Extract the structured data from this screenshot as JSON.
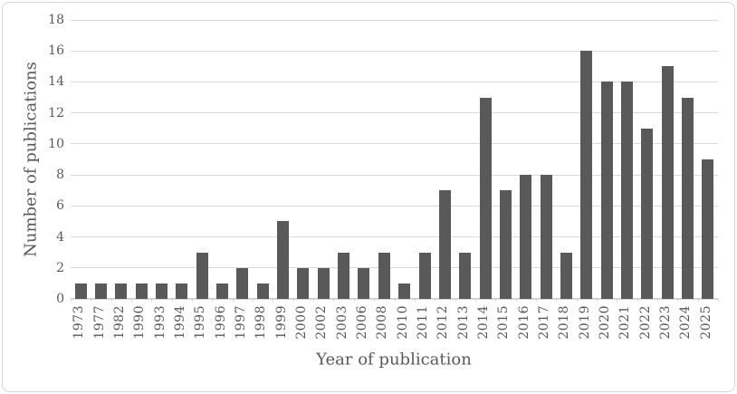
{
  "figure": {
    "background_color": "#ffffff",
    "border_color": "#d6d6d6"
  },
  "chart_data": {
    "type": "bar",
    "title": "",
    "xlabel": "Year of publication",
    "ylabel": "Number of publications",
    "categories": [
      "1973",
      "1977",
      "1982",
      "1990",
      "1993",
      "1994",
      "1995",
      "1996",
      "1997",
      "1998",
      "1999",
      "2000",
      "2002",
      "2003",
      "2006",
      "2008",
      "2010",
      "2011",
      "2012",
      "2013",
      "2014",
      "2015",
      "2016",
      "2017",
      "2018",
      "2019",
      "2020",
      "2021",
      "2022",
      "2023",
      "2024",
      "2025"
    ],
    "values": [
      1,
      1,
      1,
      1,
      1,
      1,
      3,
      1,
      2,
      1,
      5,
      2,
      2,
      3,
      2,
      3,
      1,
      3,
      7,
      3,
      13,
      7,
      8,
      8,
      3,
      16,
      14,
      14,
      11,
      15,
      13,
      9
    ],
    "ylim": [
      0,
      18
    ],
    "yticks": [
      0,
      2,
      4,
      6,
      8,
      10,
      12,
      14,
      16,
      18
    ],
    "grid": "horizontal",
    "legend": "none",
    "bar_color": "#595959",
    "gridline_color": "#d9d9d9",
    "text_color": "#595959"
  }
}
